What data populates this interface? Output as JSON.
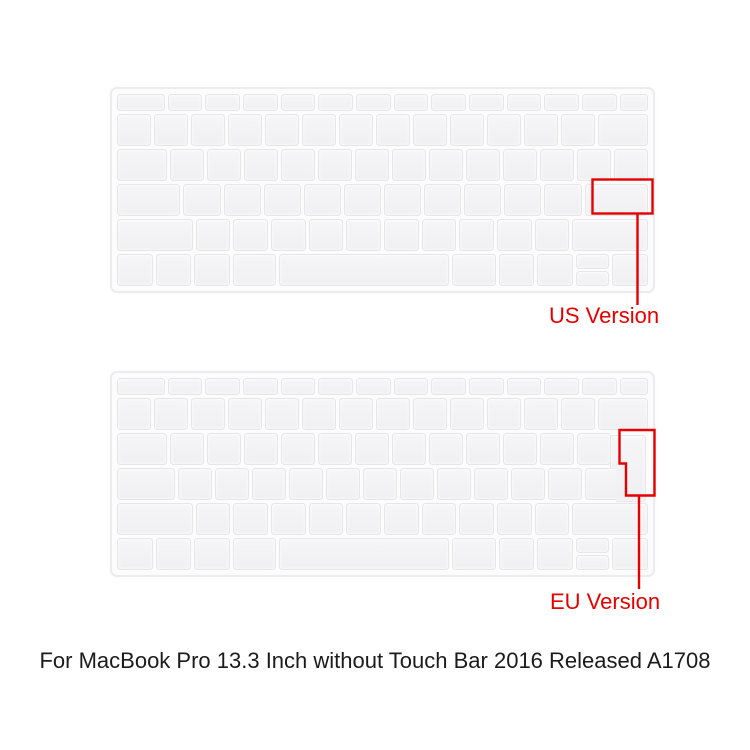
{
  "colors": {
    "annotation_red": "#e60000",
    "caption_text": "#1b1b1b",
    "key_fill": "#f3f3f5",
    "keyboard_border": "#ececee"
  },
  "annotations": {
    "us_label": "US Version",
    "eu_label": "EU Version"
  },
  "caption": {
    "text": "For MacBook Pro 13.3 Inch without Touch Bar 2016 Released A1708"
  },
  "keyboards": [
    {
      "id": "us",
      "name": "us-version-keyboard-cover",
      "layout": "ANSI (US) - wide horizontal Return key",
      "iso_enter": false,
      "rows": [
        [
          1.4,
          1,
          1,
          1,
          1,
          1,
          1,
          1,
          1,
          1,
          1,
          1,
          1,
          0.8
        ],
        [
          1,
          1,
          1,
          1,
          1,
          1,
          1,
          1,
          1,
          1,
          1,
          1,
          1,
          1.5
        ],
        [
          1.5,
          1,
          1,
          1,
          1,
          1,
          1,
          1,
          1,
          1,
          1,
          1,
          1,
          1
        ],
        [
          1.75,
          1,
          1,
          1,
          1,
          1,
          1,
          1,
          1,
          1,
          1,
          {
            "w": 1.75,
            "n": "return-key"
          }
        ],
        [
          2.25,
          1,
          1,
          1,
          1,
          1,
          1,
          1,
          1,
          1,
          1,
          2.25
        ],
        [
          1,
          1,
          1,
          1.25,
          {
            "w": 5,
            "n": "space-key"
          },
          1.25,
          1,
          {
            "w": 1,
            "n": "left-arrow-key"
          },
          {
            "t": "ud"
          },
          {
            "w": 1,
            "n": "right-arrow-key"
          }
        ]
      ]
    },
    {
      "id": "eu",
      "name": "eu-version-keyboard-cover",
      "layout": "ISO (EU) - tall L-shaped Enter key",
      "iso_enter": true,
      "rows": [
        [
          1.4,
          1,
          1,
          1,
          1,
          1,
          1,
          1,
          1,
          1,
          1,
          1,
          1,
          0.8
        ],
        [
          1,
          1,
          1,
          1,
          1,
          1,
          1,
          1,
          1,
          1,
          1,
          1,
          1,
          1.5
        ],
        [
          1.5,
          1,
          1,
          1,
          1,
          1,
          1,
          1,
          1,
          1,
          1,
          1,
          1,
          {
            "t": "sp",
            "w": 1
          }
        ],
        [
          1.75,
          1,
          1,
          1,
          1,
          1,
          1,
          1,
          1,
          1,
          1,
          1,
          1,
          {
            "t": "sp",
            "w": 0.75
          }
        ],
        [
          2.25,
          1,
          1,
          1,
          1,
          1,
          1,
          1,
          1,
          1,
          1,
          2.25
        ],
        [
          1,
          1,
          1,
          1.25,
          {
            "w": 5,
            "n": "space-key"
          },
          1.25,
          1,
          {
            "w": 1,
            "n": "left-arrow-key"
          },
          {
            "t": "ud"
          },
          {
            "w": 1,
            "n": "right-arrow-key"
          }
        ]
      ]
    }
  ]
}
